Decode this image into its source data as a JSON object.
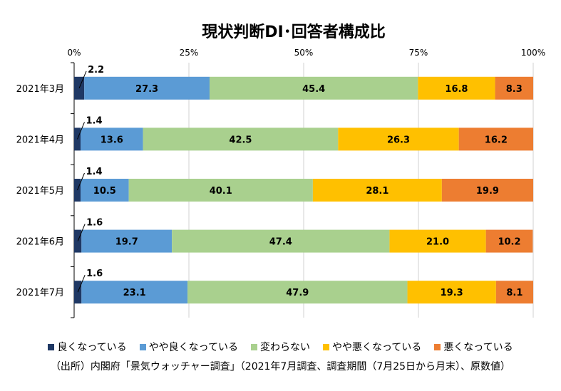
{
  "chart_data": {
    "type": "bar",
    "orientation": "horizontal",
    "stacked": "percent",
    "title": "現状判断DI･回答者構成比",
    "categories": [
      "2021年3月",
      "2021年4月",
      "2021年5月",
      "2021年6月",
      "2021年7月"
    ],
    "x_ticks": [
      "0%",
      "25%",
      "50%",
      "75%",
      "100%"
    ],
    "xlim": [
      0,
      100
    ],
    "grid": true,
    "legend_position": "bottom",
    "series": [
      {
        "name": "良くなっている",
        "color": "#1f3864",
        "values": [
          2.2,
          1.4,
          1.4,
          1.6,
          1.6
        ],
        "labels": [
          "2.2",
          "1.4",
          "1.4",
          "1.6",
          "1.6"
        ]
      },
      {
        "name": "やや良くなっている",
        "color": "#5b9bd5",
        "values": [
          27.3,
          13.6,
          10.5,
          19.7,
          23.1
        ],
        "labels": [
          "27.3",
          "13.6",
          "10.5",
          "19.7",
          "23.1"
        ]
      },
      {
        "name": "変わらない",
        "color": "#a9d08e",
        "values": [
          45.4,
          42.5,
          40.1,
          47.4,
          47.9
        ],
        "labels": [
          "45.4",
          "42.5",
          "40.1",
          "47.4",
          "47.9"
        ]
      },
      {
        "name": "やや悪くなっている",
        "color": "#ffc000",
        "values": [
          16.8,
          26.3,
          28.1,
          21.0,
          19.3
        ],
        "labels": [
          "16.8",
          "26.3",
          "28.1",
          "21.0",
          "19.3"
        ]
      },
      {
        "name": "悪くなっている",
        "color": "#ed7d31",
        "values": [
          8.3,
          16.2,
          19.9,
          10.2,
          8.1
        ],
        "labels": [
          "8.3",
          "16.2",
          "19.9",
          "10.2",
          "8.1"
        ]
      }
    ]
  },
  "source_note": "（出所）内閣府「景気ウォッチャー調査」（2021年7月調査、調査期間（7月25日から月末）、原数値）"
}
